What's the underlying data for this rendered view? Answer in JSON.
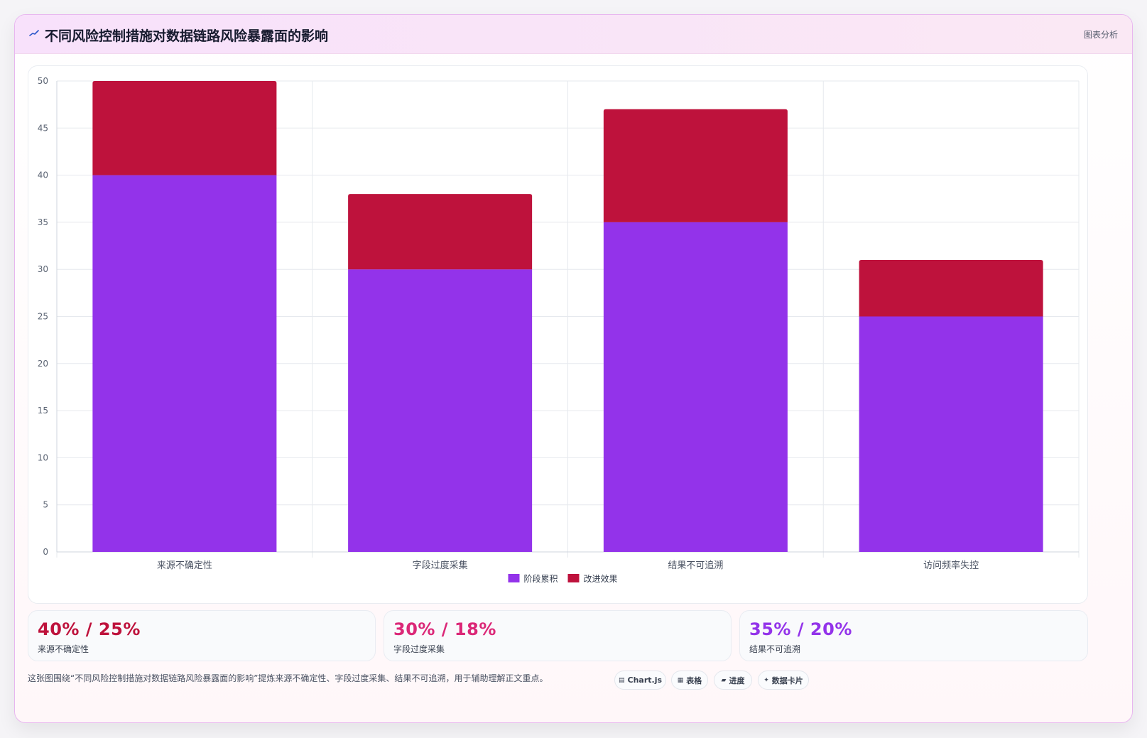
{
  "header": {
    "title": "不同风险控制措施对数据链路风险暴露面的影响",
    "tag": "图表分析",
    "icon": "line-chart-icon"
  },
  "chart_data": {
    "type": "bar",
    "stacked": true,
    "categories": [
      "来源不确定性",
      "字段过度采集",
      "结果不可追溯",
      "访问频率失控"
    ],
    "series": [
      {
        "name": "阶段累积",
        "values": [
          40,
          30,
          35,
          25
        ],
        "color": "#9333ea"
      },
      {
        "name": "改进效果",
        "values": [
          10,
          8,
          12,
          6
        ],
        "color": "#be123c"
      }
    ],
    "ylim": [
      0,
      50
    ],
    "yticks": [
      0,
      5,
      10,
      15,
      20,
      25,
      30,
      35,
      40,
      45,
      50
    ],
    "grid": true,
    "legend_position": "bottom"
  },
  "stats": [
    {
      "value": "40% / 25%",
      "label": "来源不确定性",
      "color": "#be123c"
    },
    {
      "value": "30% / 18%",
      "label": "字段过度采集",
      "color": "#db2777"
    },
    {
      "value": "35% / 20%",
      "label": "结果不可追溯",
      "color": "#9333ea"
    }
  ],
  "footnote": "这张图围绕“不同风险控制措施对数据链路风险暴露面的影响”提炼来源不确定性、字段过度采集、结果不可追溯，用于辅助理解正文重点。",
  "badges": [
    {
      "icon": "▤",
      "label": "Chart.js"
    },
    {
      "icon": "▦",
      "label": "表格"
    },
    {
      "icon": "▰",
      "label": "进度"
    },
    {
      "icon": "✦",
      "label": "数据卡片"
    }
  ]
}
